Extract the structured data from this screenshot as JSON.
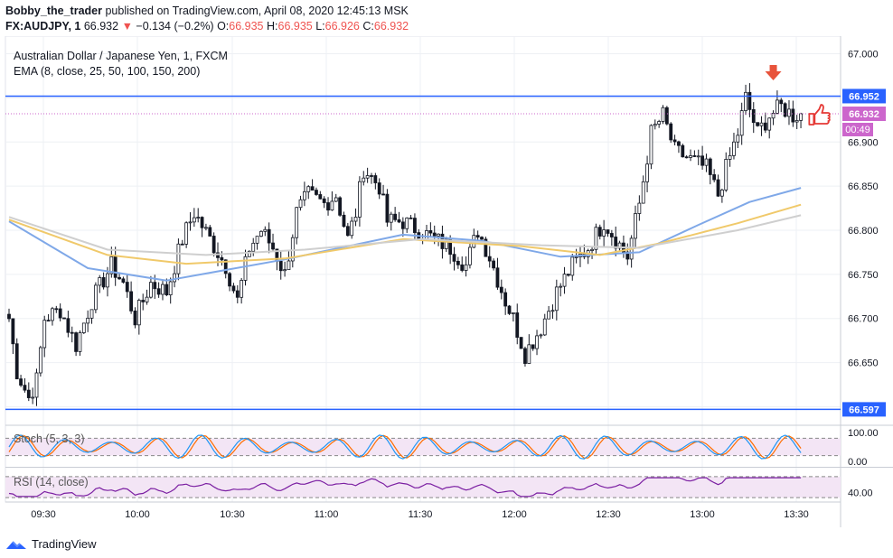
{
  "header": {
    "user": "Bobby_the_trader",
    "published": "published on TradingView.com, April 08, 2020 12:45:13 MSK",
    "symbol": "FX:AUDJPY, 1",
    "last": "66.932",
    "change": "−0.134 (−0.2%)",
    "o_label": "O:",
    "o": "66.935",
    "h_label": "H:",
    "h": "66.935",
    "l_label": "L:",
    "l": "66.926",
    "c_label": "C:",
    "c": "66.932"
  },
  "legend": {
    "title": "Australian Dollar / Japanese Yen, 1, FXCM",
    "ema": "EMA (8, close, 25, 50, 100, 150, 200)",
    "stoch": "Stoch (5, 3, 3)",
    "rsi": "RSI (14, close)"
  },
  "footer": {
    "brand": "TradingView"
  },
  "colors": {
    "up": "#ffffff",
    "down": "#131722",
    "hline": "#2962ff",
    "price_tag": "#cc66cc",
    "ema_fast": "#7fa8e8",
    "ema_mid": "#f0c96a",
    "ema_slow": "#cfcfcf",
    "stoch_k": "#2196f3",
    "stoch_d": "#ff6d00",
    "rsi": "#7b1fa2",
    "osc_bg": "#f3e5f5"
  },
  "chart_data": {
    "type": "candlestick",
    "y_range": [
      66.58,
      67.02
    ],
    "y_ticks": [
      "67.000",
      "66.950",
      "66.900",
      "66.850",
      "66.800",
      "66.750",
      "66.700",
      "66.650",
      "66.600"
    ],
    "x_ticks": [
      "09:30",
      "10:00",
      "10:30",
      "11:00",
      "11:30",
      "12:00",
      "12:30",
      "13:00",
      "13:30"
    ],
    "levels": [
      {
        "value": 66.952,
        "label": "66.952"
      },
      {
        "value": 66.597,
        "label": "66.597"
      }
    ],
    "current": {
      "value": 66.932,
      "label": "66.932",
      "countdown": "00:49"
    },
    "anchors": [
      [
        0,
        66.7
      ],
      [
        2,
        66.64
      ],
      [
        5,
        66.61
      ],
      [
        7,
        66.63
      ],
      [
        9,
        66.7
      ],
      [
        13,
        66.71
      ],
      [
        17,
        66.67
      ],
      [
        21,
        66.72
      ],
      [
        26,
        66.76
      ],
      [
        29,
        66.74
      ],
      [
        32,
        66.7
      ],
      [
        36,
        66.74
      ],
      [
        40,
        66.73
      ],
      [
        44,
        66.79
      ],
      [
        47,
        66.82
      ],
      [
        51,
        66.79
      ],
      [
        55,
        66.76
      ],
      [
        58,
        66.72
      ],
      [
        61,
        66.78
      ],
      [
        64,
        66.8
      ],
      [
        67,
        66.78
      ],
      [
        70,
        66.75
      ],
      [
        73,
        66.82
      ],
      [
        76,
        66.84
      ],
      [
        80,
        66.83
      ],
      [
        83,
        66.84
      ],
      [
        86,
        66.79
      ],
      [
        88,
        66.82
      ],
      [
        90,
        66.87
      ],
      [
        94,
        66.85
      ],
      [
        96,
        66.81
      ],
      [
        100,
        66.81
      ],
      [
        104,
        66.8
      ],
      [
        108,
        66.79
      ],
      [
        112,
        66.78
      ],
      [
        116,
        66.76
      ],
      [
        119,
        66.8
      ],
      [
        122,
        66.77
      ],
      [
        126,
        66.72
      ],
      [
        128,
        66.7
      ],
      [
        131,
        66.66
      ],
      [
        135,
        66.69
      ],
      [
        139,
        66.73
      ],
      [
        143,
        66.76
      ],
      [
        147,
        66.78
      ],
      [
        151,
        66.81
      ],
      [
        154,
        66.79
      ],
      [
        157,
        66.77
      ],
      [
        160,
        66.83
      ],
      [
        163,
        66.91
      ],
      [
        166,
        66.93
      ],
      [
        169,
        66.89
      ],
      [
        173,
        66.88
      ],
      [
        177,
        66.87
      ],
      [
        180,
        66.84
      ],
      [
        182,
        66.87
      ],
      [
        185,
        66.91
      ],
      [
        187,
        66.95
      ],
      [
        190,
        66.91
      ],
      [
        193,
        66.93
      ],
      [
        196,
        66.94
      ],
      [
        199,
        66.93
      ],
      [
        201,
        66.932
      ]
    ],
    "ema": [
      {
        "name": "ema-fast",
        "color_key": "ema_fast",
        "points": [
          [
            0,
            66.81
          ],
          [
            20,
            66.757
          ],
          [
            40,
            66.743
          ],
          [
            70,
            66.767
          ],
          [
            100,
            66.795
          ],
          [
            120,
            66.788
          ],
          [
            140,
            66.77
          ],
          [
            160,
            66.775
          ],
          [
            175,
            66.806
          ],
          [
            188,
            66.832
          ],
          [
            201,
            66.848
          ]
        ]
      },
      {
        "name": "ema-mid",
        "color_key": "ema_mid",
        "points": [
          [
            0,
            66.812
          ],
          [
            25,
            66.772
          ],
          [
            45,
            66.762
          ],
          [
            70,
            66.768
          ],
          [
            100,
            66.79
          ],
          [
            130,
            66.782
          ],
          [
            150,
            66.772
          ],
          [
            165,
            66.785
          ],
          [
            185,
            66.808
          ],
          [
            201,
            66.829
          ]
        ]
      },
      {
        "name": "ema-slow",
        "color_key": "ema_slow",
        "points": [
          [
            0,
            66.815
          ],
          [
            25,
            66.778
          ],
          [
            50,
            66.772
          ],
          [
            75,
            66.778
          ],
          [
            105,
            66.79
          ],
          [
            135,
            66.783
          ],
          [
            160,
            66.78
          ],
          [
            185,
            66.8
          ],
          [
            201,
            66.817
          ]
        ]
      }
    ],
    "stoch": {
      "y_range": [
        0,
        100
      ],
      "y_ticks": [
        "100.00",
        "0.00"
      ],
      "upper": 80,
      "lower": 20
    },
    "rsi": {
      "y_range": [
        25,
        75
      ],
      "y_ticks": [
        "40.00"
      ],
      "upper": 70,
      "lower": 30
    }
  }
}
